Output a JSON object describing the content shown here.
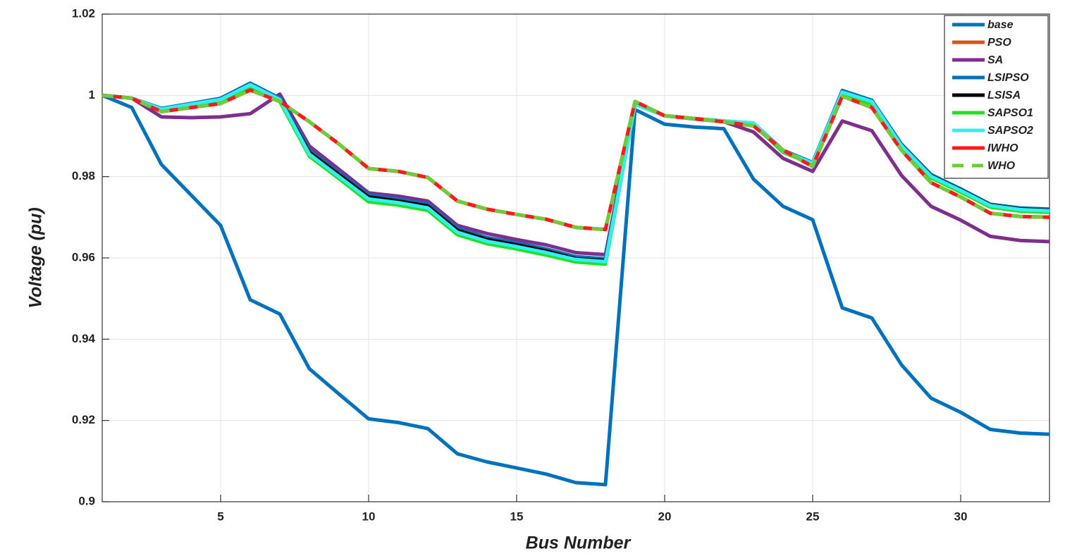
{
  "chart_data": {
    "type": "line",
    "x_label": "Bus Number",
    "y_label": "Voltage (pu)",
    "x": [
      1,
      2,
      3,
      4,
      5,
      6,
      7,
      8,
      9,
      10,
      11,
      12,
      13,
      14,
      15,
      16,
      17,
      18,
      19,
      20,
      21,
      22,
      23,
      24,
      25,
      26,
      27,
      28,
      29,
      30,
      31,
      32,
      33
    ],
    "xlim": [
      1,
      33
    ],
    "xticks": [
      5,
      10,
      15,
      20,
      25,
      30
    ],
    "ylim": [
      0.9,
      1.02
    ],
    "yticks": [
      0.9,
      0.92,
      0.94,
      0.96,
      0.98,
      1,
      1.02
    ],
    "grid": true,
    "legend": "top-right",
    "series": [
      {
        "name": "base",
        "color": "#0072bd",
        "values": [
          1.0,
          0.997,
          0.983,
          0.9755,
          0.968,
          0.9497,
          0.9462,
          0.9327,
          0.9265,
          0.9204,
          0.9195,
          0.918,
          0.9118,
          0.9098,
          0.9083,
          0.9068,
          0.9047,
          0.9042,
          0.9965,
          0.9929,
          0.9922,
          0.9918,
          0.9794,
          0.9727,
          0.9694,
          0.9477,
          0.9452,
          0.9337,
          0.9255,
          0.922,
          0.9178,
          0.9169,
          0.9166
        ]
      },
      {
        "name": "PSO",
        "color": "#d95319",
        "values": [
          1.0,
          0.9993,
          0.996,
          0.997,
          0.998,
          1.0013,
          0.9985,
          0.9935,
          0.988,
          0.982,
          0.9813,
          0.9798,
          0.974,
          0.972,
          0.9707,
          0.9695,
          0.9675,
          0.967,
          0.9985,
          0.995,
          0.9943,
          0.9935,
          0.9925,
          0.9865,
          0.9825,
          0.9998,
          0.997,
          0.9865,
          0.9785,
          0.975,
          0.971,
          0.9702,
          0.97
        ]
      },
      {
        "name": "SA",
        "color": "#7e2f8e",
        "values": [
          1.0,
          0.9993,
          0.9947,
          0.9945,
          0.9947,
          0.9955,
          1.0003,
          0.9875,
          0.9818,
          0.976,
          0.9752,
          0.974,
          0.968,
          0.966,
          0.9645,
          0.9632,
          0.9613,
          0.9608,
          0.998,
          0.995,
          0.9942,
          0.9935,
          0.991,
          0.9845,
          0.9813,
          0.9937,
          0.9913,
          0.9803,
          0.9727,
          0.9693,
          0.9653,
          0.9643,
          0.964
        ]
      },
      {
        "name": "LSIPSO",
        "color": "#0a6fb8",
        "values": [
          1.0,
          0.9993,
          0.9968,
          0.998,
          0.9993,
          1.003,
          0.9993,
          0.9865,
          0.981,
          0.9755,
          0.9745,
          0.9733,
          0.9673,
          0.965,
          0.9637,
          0.9622,
          0.9603,
          0.9598,
          0.9978,
          0.995,
          0.9943,
          0.9937,
          0.9932,
          0.9865,
          0.9835,
          1.0012,
          0.9988,
          0.988,
          0.9805,
          0.977,
          0.9732,
          0.9723,
          0.972
        ]
      },
      {
        "name": "LSISA",
        "color": "#000000",
        "values": [
          1.0,
          0.9993,
          0.9965,
          0.9977,
          0.999,
          1.0025,
          0.999,
          0.986,
          0.9805,
          0.975,
          0.974,
          0.9728,
          0.9668,
          0.9645,
          0.9632,
          0.9617,
          0.9598,
          0.9593,
          0.9978,
          0.995,
          0.9943,
          0.9937,
          0.993,
          0.9863,
          0.9832,
          1.0008,
          0.9985,
          0.9877,
          0.9802,
          0.9767,
          0.973,
          0.972,
          0.9717
        ]
      },
      {
        "name": "SAPSO1",
        "color": "#22e022",
        "values": [
          1.0,
          0.9993,
          0.9963,
          0.9975,
          0.9987,
          1.002,
          0.9985,
          0.985,
          0.9795,
          0.9738,
          0.973,
          0.9717,
          0.9657,
          0.9635,
          0.9622,
          0.9607,
          0.959,
          0.9585,
          0.9978,
          0.995,
          0.9943,
          0.9937,
          0.9928,
          0.986,
          0.983,
          1.0003,
          0.998,
          0.9872,
          0.9797,
          0.9762,
          0.9725,
          0.9715,
          0.9712
        ]
      },
      {
        "name": "SAPSO2",
        "color": "#33f0f0",
        "values": [
          1.0,
          0.9993,
          0.9966,
          0.9978,
          0.999,
          1.0026,
          0.999,
          0.9855,
          0.98,
          0.9745,
          0.9736,
          0.9723,
          0.9663,
          0.9641,
          0.9628,
          0.9613,
          0.9596,
          0.9591,
          0.9978,
          0.995,
          0.9943,
          0.9937,
          0.9932,
          0.9863,
          0.9833,
          1.0008,
          0.9985,
          0.9876,
          0.9801,
          0.9766,
          0.9729,
          0.9719,
          0.9716
        ]
      },
      {
        "name": "IWHO",
        "color": "#ff1a1a",
        "values": [
          1.0,
          0.9993,
          0.996,
          0.997,
          0.998,
          1.0013,
          0.9985,
          0.9935,
          0.988,
          0.982,
          0.9813,
          0.9798,
          0.974,
          0.972,
          0.9707,
          0.9695,
          0.9675,
          0.967,
          0.9985,
          0.995,
          0.9943,
          0.9935,
          0.9925,
          0.9865,
          0.9825,
          0.9998,
          0.997,
          0.9865,
          0.9785,
          0.975,
          0.971,
          0.9702,
          0.97
        ]
      },
      {
        "name": "WHO",
        "color": "#6ccc3a",
        "dashed": true,
        "values": [
          1.0,
          0.9993,
          0.996,
          0.997,
          0.998,
          1.0013,
          0.9985,
          0.9935,
          0.988,
          0.982,
          0.9813,
          0.9798,
          0.974,
          0.972,
          0.9707,
          0.9695,
          0.9675,
          0.967,
          0.9985,
          0.995,
          0.9943,
          0.9935,
          0.9925,
          0.9865,
          0.9825,
          0.9998,
          0.997,
          0.9865,
          0.9785,
          0.975,
          0.971,
          0.9702,
          0.97
        ]
      }
    ]
  }
}
